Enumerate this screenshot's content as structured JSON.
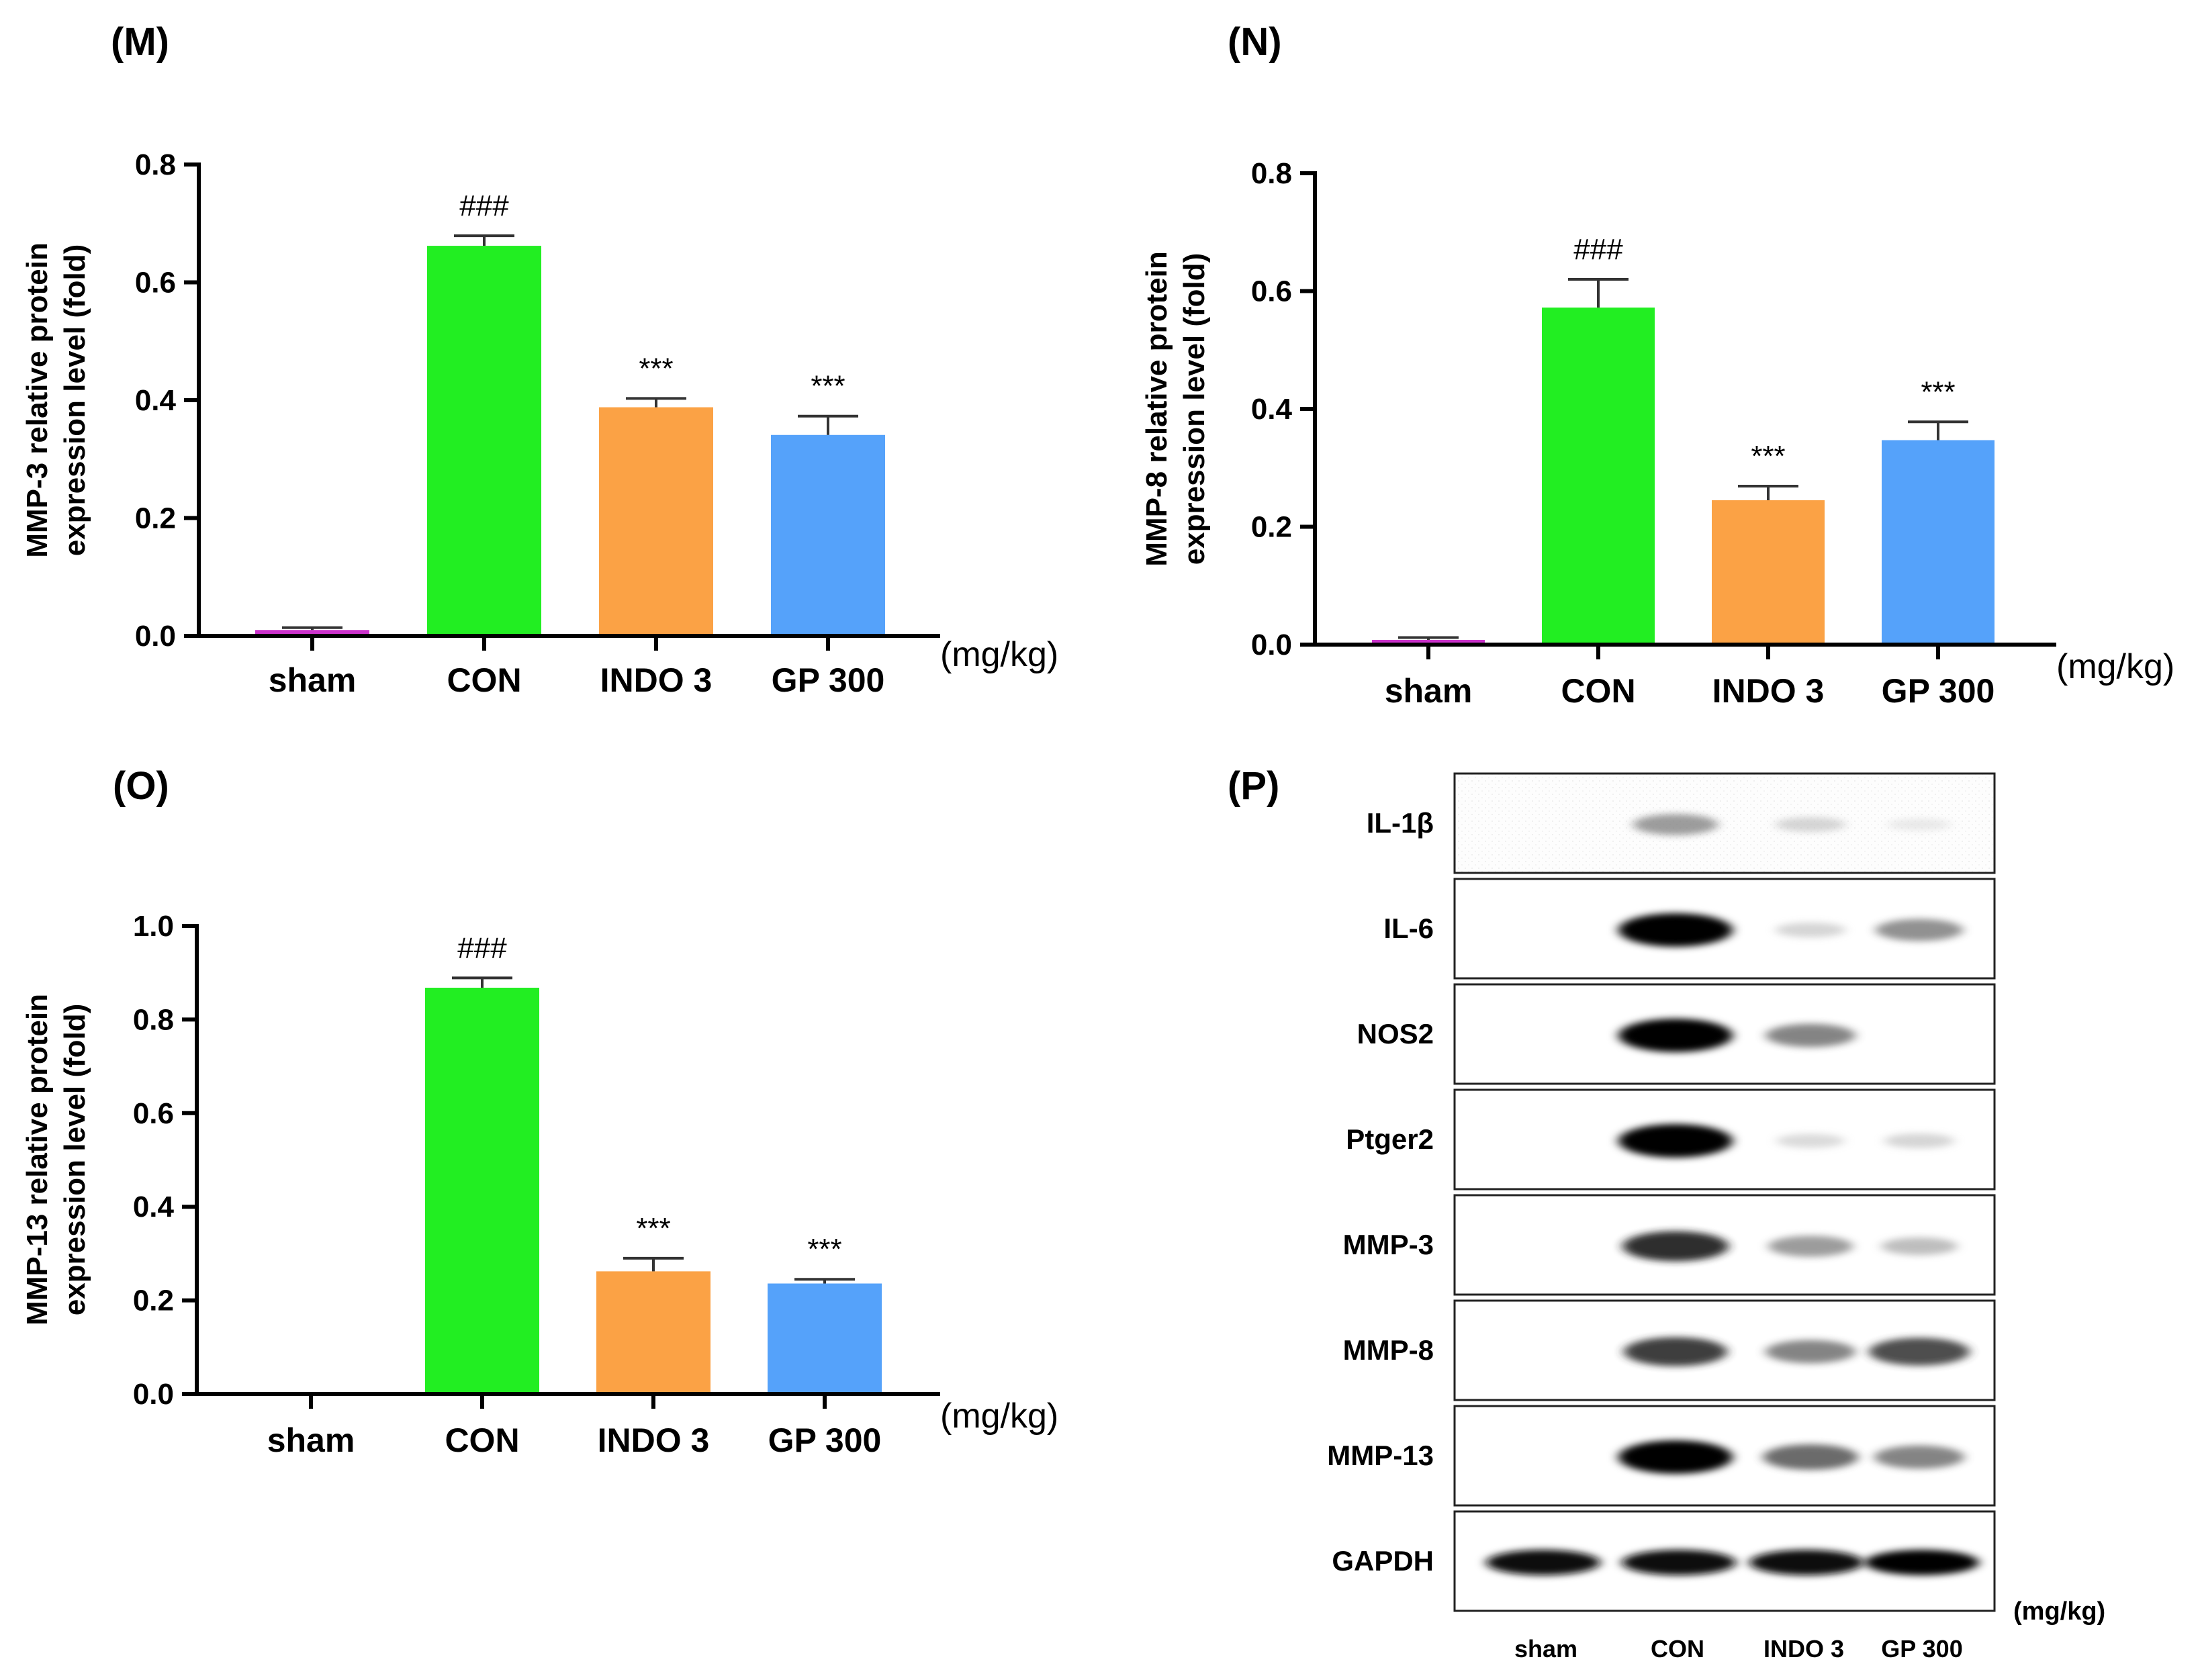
{
  "colors": {
    "sham": "#cc33cc",
    "CON": "#22ee22",
    "INDO 3": "#fba245",
    "GP 300": "#55a2fa"
  },
  "chart_data": [
    {
      "panel": "(M)",
      "type": "bar",
      "categories": [
        "sham",
        "CON",
        "INDO 3",
        "GP 300"
      ],
      "values": [
        0.01,
        0.662,
        0.388,
        0.341
      ],
      "errors": [
        0.004,
        0.017,
        0.015,
        0.032
      ],
      "annotations": [
        "",
        "###",
        "***",
        "***"
      ],
      "ylabel_line1": "MMP-3 relative protein",
      "ylabel_line2": "expression level (fold)",
      "xlabel": "(mg/kg)",
      "ylim": [
        0,
        0.8
      ],
      "yticks": [
        "0.0",
        "0.2",
        "0.4",
        "0.6",
        "0.8"
      ]
    },
    {
      "panel": "(N)",
      "type": "bar",
      "categories": [
        "sham",
        "CON",
        "INDO 3",
        "GP 300"
      ],
      "values": [
        0.008,
        0.572,
        0.245,
        0.347
      ],
      "errors": [
        0.004,
        0.048,
        0.024,
        0.031
      ],
      "annotations": [
        "",
        "###",
        "***",
        "***"
      ],
      "ylabel_line1": "MMP-8 relative protein",
      "ylabel_line2": "expression level (fold)",
      "xlabel": "(mg/kg)",
      "ylim": [
        0,
        0.8
      ],
      "yticks": [
        "0.0",
        "0.2",
        "0.4",
        "0.6",
        "0.8"
      ]
    },
    {
      "panel": "(O)",
      "type": "bar",
      "categories": [
        "sham",
        "CON",
        "INDO 3",
        "GP 300"
      ],
      "values": [
        0.0,
        0.868,
        0.262,
        0.236
      ],
      "errors": [
        0.0,
        0.021,
        0.028,
        0.009
      ],
      "annotations": [
        "",
        "###",
        "***",
        "***"
      ],
      "ylabel_line1": "MMP-13 relative protein",
      "ylabel_line2": "expression level (fold)",
      "xlabel": "(mg/kg)",
      "ylim": [
        0,
        1.0
      ],
      "yticks": [
        "0.0",
        "0.2",
        "0.4",
        "0.6",
        "0.8",
        "1.0"
      ]
    }
  ],
  "blot": {
    "panel": "(P)",
    "rows": [
      "IL-1β",
      "IL-6",
      "NOS2",
      "Ptger2",
      "MMP-3",
      "MMP-8",
      "MMP-13",
      "GAPDH"
    ],
    "lanes": [
      "sham",
      "CON",
      "INDO 3",
      "GP 300"
    ],
    "unit": "(mg/kg)",
    "intensity": [
      [
        0.0,
        0.45,
        0.18,
        0.06
      ],
      [
        0.0,
        1.0,
        0.18,
        0.5
      ],
      [
        0.0,
        1.0,
        0.55,
        0.0
      ],
      [
        0.0,
        1.0,
        0.15,
        0.18
      ],
      [
        0.0,
        0.85,
        0.45,
        0.3
      ],
      [
        0.0,
        0.8,
        0.55,
        0.75
      ],
      [
        0.0,
        1.0,
        0.65,
        0.55
      ],
      [
        0.95,
        0.95,
        0.95,
        1.0
      ]
    ]
  }
}
